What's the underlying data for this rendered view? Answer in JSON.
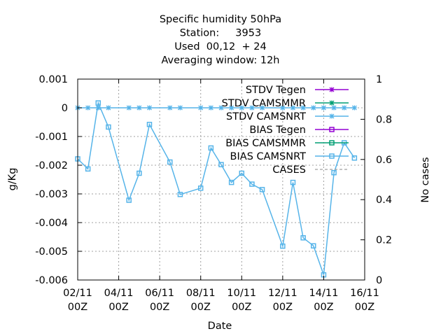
{
  "chart_data": {
    "type": "line",
    "title_lines": [
      "Specific humidity 50hPa",
      "Station:     3953",
      "Used  00,12  + 24",
      "Averaging window: 12h"
    ],
    "xlabel": "Date",
    "ylabel": "g/Kg",
    "y2label": "No cases",
    "xlim": [
      0,
      14
    ],
    "ylim": [
      -0.006,
      0.001
    ],
    "y2lim": [
      0,
      1
    ],
    "x_ticks": [
      {
        "value": 0,
        "line1": "02/11",
        "line2": "00Z"
      },
      {
        "value": 2,
        "line1": "04/11",
        "line2": "00Z"
      },
      {
        "value": 4,
        "line1": "06/11",
        "line2": "00Z"
      },
      {
        "value": 6,
        "line1": "08/11",
        "line2": "00Z"
      },
      {
        "value": 8,
        "line1": "10/11",
        "line2": "00Z"
      },
      {
        "value": 10,
        "line1": "12/11",
        "line2": "00Z"
      },
      {
        "value": 12,
        "line1": "14/11",
        "line2": "00Z"
      },
      {
        "value": 14,
        "line1": "16/11",
        "line2": "00Z"
      }
    ],
    "y_ticks": [
      {
        "value": 0.001,
        "label": "0.001"
      },
      {
        "value": 0,
        "label": "0"
      },
      {
        "value": -0.001,
        "label": "-0.001"
      },
      {
        "value": -0.002,
        "label": "-0.002"
      },
      {
        "value": -0.003,
        "label": "-0.003"
      },
      {
        "value": -0.004,
        "label": "-0.004"
      },
      {
        "value": -0.005,
        "label": "-0.005"
      },
      {
        "value": -0.006,
        "label": "-0.006"
      }
    ],
    "y2_ticks": [
      {
        "value": 1,
        "label": "1"
      },
      {
        "value": 0.8,
        "label": "0.8"
      },
      {
        "value": 0.6,
        "label": "0.6"
      },
      {
        "value": 0.4,
        "label": "0.4"
      },
      {
        "value": 0.2,
        "label": "0.2"
      },
      {
        "value": 0,
        "label": "0"
      }
    ],
    "grid": true,
    "legend_position": "top-right",
    "legend": [
      {
        "label": "STDV Tegen",
        "color": "#9400d3",
        "marker": "star"
      },
      {
        "label": "STDV CAMSMMR",
        "color": "#009e73",
        "marker": "star"
      },
      {
        "label": "STDV CAMSNRT",
        "color": "#56b4e9",
        "marker": "star"
      },
      {
        "label": "BIAS Tegen",
        "color": "#9400d3",
        "marker": "square"
      },
      {
        "label": "BIAS CAMSMMR",
        "color": "#009e73",
        "marker": "square"
      },
      {
        "label": "BIAS CAMSNRT",
        "color": "#56b4e9",
        "marker": "square"
      },
      {
        "label": "CASES",
        "color": "#a0a0a0",
        "marker": "dash"
      }
    ],
    "series": [
      {
        "name": "STDV CAMSNRT",
        "color": "#56b4e9",
        "marker": "star",
        "x": [
          0,
          0.5,
          1,
          1.5,
          2.5,
          3,
          3.5,
          4.5,
          5,
          6,
          6.5,
          7,
          7.5,
          8,
          8.5,
          9,
          10,
          10.5,
          11,
          11.5,
          12,
          12.5,
          13,
          13.5
        ],
        "values": [
          0,
          0,
          0,
          0,
          0,
          0,
          0,
          0,
          0,
          0,
          0,
          0,
          0,
          0,
          0,
          0,
          0,
          0,
          0,
          0,
          0,
          0,
          0,
          0
        ]
      },
      {
        "name": "BIAS CAMSNRT",
        "color": "#56b4e9",
        "marker": "square",
        "x": [
          0,
          0.5,
          1,
          1.5,
          2.5,
          3,
          3.5,
          4.5,
          5,
          6,
          6.5,
          7,
          7.5,
          8,
          8.5,
          9,
          10,
          10.5,
          11,
          11.5,
          12,
          12.5,
          13,
          13.5
        ],
        "values": [
          -0.00178,
          -0.00213,
          0.00017,
          -0.00067,
          -0.00322,
          -0.00228,
          -0.00058,
          -0.00189,
          -0.00302,
          -0.0028,
          -0.0014,
          -0.00198,
          -0.0026,
          -0.00228,
          -0.00266,
          -0.00285,
          -0.00482,
          -0.0026,
          -0.00453,
          -0.00481,
          -0.00582,
          -0.00226,
          -0.00122,
          -0.00175
        ]
      }
    ]
  }
}
